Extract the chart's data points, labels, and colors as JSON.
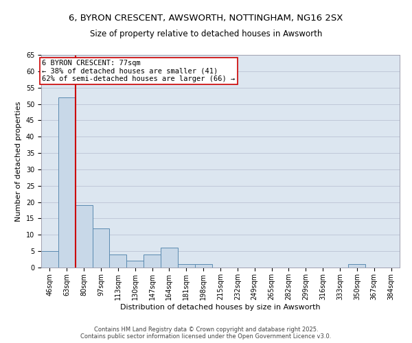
{
  "title_line1": "6, BYRON CRESCENT, AWSWORTH, NOTTINGHAM, NG16 2SX",
  "title_line2": "Size of property relative to detached houses in Awsworth",
  "xlabel": "Distribution of detached houses by size in Awsworth",
  "ylabel": "Number of detached properties",
  "categories": [
    "46sqm",
    "63sqm",
    "80sqm",
    "97sqm",
    "113sqm",
    "130sqm",
    "147sqm",
    "164sqm",
    "181sqm",
    "198sqm",
    "215sqm",
    "232sqm",
    "249sqm",
    "265sqm",
    "282sqm",
    "299sqm",
    "316sqm",
    "333sqm",
    "350sqm",
    "367sqm",
    "384sqm"
  ],
  "values": [
    5,
    52,
    19,
    12,
    4,
    2,
    4,
    6,
    1,
    1,
    0,
    0,
    0,
    0,
    0,
    0,
    0,
    0,
    1,
    0,
    0
  ],
  "bar_color": "#c8d8e8",
  "bar_edge_color": "#5a8ab0",
  "grid_color": "#c0c8d8",
  "background_color": "#dce6f0",
  "vline_color": "#cc0000",
  "vline_x": 1.5,
  "annotation_text": "6 BYRON CRESCENT: 77sqm\n← 38% of detached houses are smaller (41)\n62% of semi-detached houses are larger (66) →",
  "annotation_box_color": "#cc0000",
  "ylim": [
    0,
    65
  ],
  "yticks": [
    0,
    5,
    10,
    15,
    20,
    25,
    30,
    35,
    40,
    45,
    50,
    55,
    60,
    65
  ],
  "footer_text": "Contains HM Land Registry data © Crown copyright and database right 2025.\nContains public sector information licensed under the Open Government Licence v3.0.",
  "title_fontsize": 9.5,
  "subtitle_fontsize": 8.5,
  "axis_label_fontsize": 8,
  "tick_fontsize": 7,
  "annotation_fontsize": 7.5
}
